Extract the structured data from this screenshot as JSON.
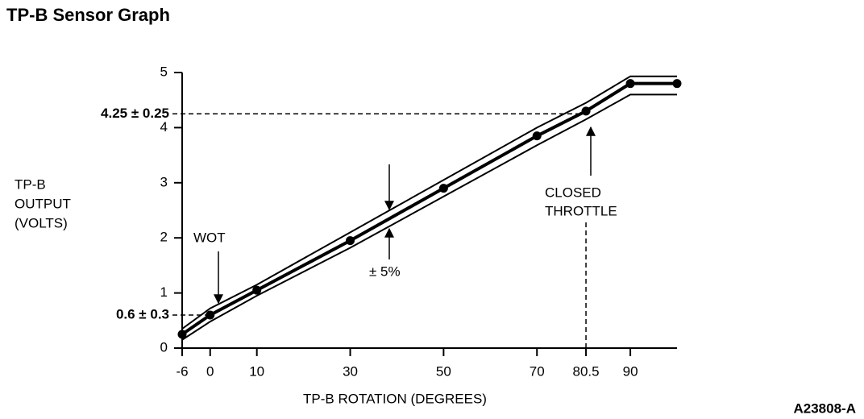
{
  "chart_data": {
    "type": "line",
    "title": "TP-B Sensor Graph",
    "y_label": [
      "TP-B",
      "OUTPUT",
      "(VOLTS)"
    ],
    "x_label": "TP-B ROTATION (DEGREES)",
    "figure_id": "A23808-A",
    "x": [
      -6,
      0,
      10,
      30,
      50,
      70,
      80.5,
      90,
      100
    ],
    "series": [
      {
        "color": "#000000",
        "width": 2,
        "values": [
          0.35,
          0.72,
          1.15,
          2.1,
          3.05,
          4.0,
          4.45,
          4.93,
          4.93
        ]
      },
      {
        "color": "#000000",
        "width": 4,
        "markers": true,
        "values": [
          0.25,
          0.6,
          1.05,
          1.95,
          2.9,
          3.85,
          4.3,
          4.8,
          4.8
        ]
      },
      {
        "color": "#000000",
        "width": 2,
        "values": [
          0.15,
          0.48,
          0.95,
          1.82,
          2.75,
          3.68,
          4.15,
          4.6,
          4.6
        ]
      }
    ],
    "xlim": [
      -6,
      100
    ],
    "ylim": [
      0,
      5
    ],
    "xticks": [
      -6,
      0,
      10,
      30,
      50,
      70,
      80.5,
      90
    ],
    "yticks": [
      0,
      1,
      2,
      3,
      4,
      5
    ],
    "reference_lines": [
      {
        "value": 4.25,
        "label": "4.25 ± 0.25"
      },
      {
        "value": 0.6,
        "label": "0.6 ± 0.3"
      }
    ],
    "annotations": [
      "WOT",
      [
        "CLOSED",
        "THROTTLE"
      ],
      "± 5%"
    ]
  }
}
